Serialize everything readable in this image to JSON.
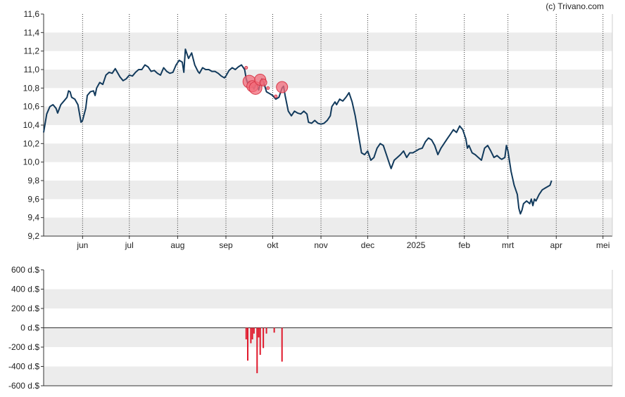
{
  "source_credit": "(c) Trivano.com",
  "chart_data": [
    {
      "type": "line",
      "title": "",
      "xlabel": "",
      "ylabel": "",
      "ylim": [
        9.2,
        11.6
      ],
      "yticks": [
        "11,6",
        "11,4",
        "11,2",
        "11,0",
        "10,8",
        "10,6",
        "10,4",
        "10,2",
        "10,0",
        "9,8",
        "9,6",
        "9,4",
        "9,2"
      ],
      "ytick_values": [
        11.6,
        11.4,
        11.2,
        11.0,
        10.8,
        10.6,
        10.4,
        10.2,
        10.0,
        9.8,
        9.6,
        9.4,
        9.2
      ],
      "x_range_days": [
        0,
        365
      ],
      "month_ticks": [
        {
          "label": "jun",
          "day": 25
        },
        {
          "label": "jul",
          "day": 55
        },
        {
          "label": "aug",
          "day": 86
        },
        {
          "label": "sep",
          "day": 117
        },
        {
          "label": "okt",
          "day": 147
        },
        {
          "label": "nov",
          "day": 178
        },
        {
          "label": "dec",
          "day": 208
        },
        {
          "label": "2025",
          "day": 239
        },
        {
          "label": "feb",
          "day": 270
        },
        {
          "label": "mrt",
          "day": 298
        },
        {
          "label": "apr",
          "day": 329
        },
        {
          "label": "mei",
          "day": 359
        }
      ],
      "grid": "alternating horizontal bands, dotted vertical month lines",
      "colors": {
        "line": "#123a5c",
        "band": "#ececec",
        "marker": "#f26b7a",
        "marker_edge": "#d83a4a"
      },
      "series": [
        {
          "values": [
            [
              0,
              10.32
            ],
            [
              2,
              10.52
            ],
            [
              4,
              10.6
            ],
            [
              6,
              10.62
            ],
            [
              8,
              10.58
            ],
            [
              9,
              10.53
            ],
            [
              11,
              10.62
            ],
            [
              13,
              10.66
            ],
            [
              15,
              10.7
            ],
            [
              16,
              10.77
            ],
            [
              17,
              10.76
            ],
            [
              18,
              10.7
            ],
            [
              20,
              10.68
            ],
            [
              22,
              10.62
            ],
            [
              24,
              10.43
            ],
            [
              25,
              10.45
            ],
            [
              27,
              10.58
            ],
            [
              28,
              10.72
            ],
            [
              30,
              10.76
            ],
            [
              32,
              10.77
            ],
            [
              33,
              10.72
            ],
            [
              34,
              10.8
            ],
            [
              36,
              10.86
            ],
            [
              38,
              10.84
            ],
            [
              40,
              10.94
            ],
            [
              42,
              10.97
            ],
            [
              44,
              10.96
            ],
            [
              46,
              11.01
            ],
            [
              47,
              10.98
            ],
            [
              49,
              10.92
            ],
            [
              51,
              10.88
            ],
            [
              53,
              10.9
            ],
            [
              55,
              10.94
            ],
            [
              57,
              10.93
            ],
            [
              59,
              10.97
            ],
            [
              61,
              11.0
            ],
            [
              63,
              11.0
            ],
            [
              65,
              11.05
            ],
            [
              67,
              11.03
            ],
            [
              69,
              10.98
            ],
            [
              71,
              10.99
            ],
            [
              73,
              10.96
            ],
            [
              75,
              10.94
            ],
            [
              77,
              11.02
            ],
            [
              79,
              10.98
            ],
            [
              81,
              10.96
            ],
            [
              83,
              10.97
            ],
            [
              85,
              11.05
            ],
            [
              87,
              11.1
            ],
            [
              89,
              11.08
            ],
            [
              90,
              10.97
            ],
            [
              91,
              11.22
            ],
            [
              93,
              11.12
            ],
            [
              95,
              11.18
            ],
            [
              97,
              11.05
            ],
            [
              99,
              10.98
            ],
            [
              100,
              10.96
            ],
            [
              102,
              11.02
            ],
            [
              104,
              11.0
            ],
            [
              106,
              11.0
            ],
            [
              108,
              10.98
            ],
            [
              110,
              10.98
            ],
            [
              112,
              10.96
            ],
            [
              114,
              10.93
            ],
            [
              116,
              10.91
            ],
            [
              117,
              10.93
            ],
            [
              119,
              10.99
            ],
            [
              121,
              11.02
            ],
            [
              123,
              11.0
            ],
            [
              125,
              11.03
            ],
            [
              127,
              11.05
            ],
            [
              129,
              11.0
            ],
            [
              130,
              10.9
            ],
            [
              131,
              10.85
            ],
            [
              132,
              10.87
            ],
            [
              133,
              10.83
            ],
            [
              134,
              10.82
            ],
            [
              135,
              10.79
            ],
            [
              136,
              10.83
            ],
            [
              137,
              10.84
            ],
            [
              138,
              10.78
            ],
            [
              139,
              10.85
            ],
            [
              140,
              10.9
            ],
            [
              141,
              10.87
            ],
            [
              142,
              10.82
            ],
            [
              143,
              10.76
            ],
            [
              145,
              10.74
            ],
            [
              147,
              10.72
            ],
            [
              149,
              10.68
            ],
            [
              151,
              10.7
            ],
            [
              153,
              10.8
            ],
            [
              154,
              10.82
            ],
            [
              155,
              10.72
            ],
            [
              157,
              10.55
            ],
            [
              159,
              10.5
            ],
            [
              161,
              10.55
            ],
            [
              163,
              10.53
            ],
            [
              165,
              10.52
            ],
            [
              167,
              10.55
            ],
            [
              169,
              10.52
            ],
            [
              170,
              10.43
            ],
            [
              172,
              10.42
            ],
            [
              174,
              10.45
            ],
            [
              176,
              10.42
            ],
            [
              178,
              10.41
            ],
            [
              180,
              10.42
            ],
            [
              182,
              10.45
            ],
            [
              184,
              10.5
            ],
            [
              185,
              10.6
            ],
            [
              187,
              10.65
            ],
            [
              188,
              10.62
            ],
            [
              190,
              10.68
            ],
            [
              192,
              10.66
            ],
            [
              194,
              10.7
            ],
            [
              196,
              10.75
            ],
            [
              198,
              10.65
            ],
            [
              200,
              10.5
            ],
            [
              202,
              10.3
            ],
            [
              204,
              10.1
            ],
            [
              206,
              10.08
            ],
            [
              208,
              10.12
            ],
            [
              210,
              10.02
            ],
            [
              212,
              10.05
            ],
            [
              214,
              10.15
            ],
            [
              216,
              10.2
            ],
            [
              218,
              10.18
            ],
            [
              220,
              10.08
            ],
            [
              222,
              9.98
            ],
            [
              223,
              9.93
            ],
            [
              225,
              10.02
            ],
            [
              227,
              10.05
            ],
            [
              229,
              10.08
            ],
            [
              231,
              10.12
            ],
            [
              233,
              10.05
            ],
            [
              235,
              10.1
            ],
            [
              237,
              10.1
            ],
            [
              239,
              10.12
            ],
            [
              241,
              10.14
            ],
            [
              243,
              10.15
            ],
            [
              245,
              10.22
            ],
            [
              247,
              10.26
            ],
            [
              249,
              10.24
            ],
            [
              251,
              10.18
            ],
            [
              253,
              10.08
            ],
            [
              255,
              10.15
            ],
            [
              257,
              10.2
            ],
            [
              259,
              10.25
            ],
            [
              261,
              10.3
            ],
            [
              263,
              10.35
            ],
            [
              265,
              10.32
            ],
            [
              267,
              10.39
            ],
            [
              269,
              10.35
            ],
            [
              271,
              10.25
            ],
            [
              272,
              10.15
            ],
            [
              273,
              10.18
            ],
            [
              275,
              10.1
            ],
            [
              277,
              10.08
            ],
            [
              279,
              10.05
            ],
            [
              281,
              10.02
            ],
            [
              283,
              10.15
            ],
            [
              285,
              10.18
            ],
            [
              287,
              10.12
            ],
            [
              289,
              10.05
            ],
            [
              291,
              10.07
            ],
            [
              293,
              10.04
            ],
            [
              294,
              10.03
            ],
            [
              296,
              10.05
            ],
            [
              297,
              10.18
            ],
            [
              298,
              10.12
            ],
            [
              300,
              9.9
            ],
            [
              302,
              9.75
            ],
            [
              304,
              9.65
            ],
            [
              305,
              9.5
            ],
            [
              306,
              9.44
            ],
            [
              307,
              9.48
            ],
            [
              308,
              9.55
            ],
            [
              310,
              9.58
            ],
            [
              312,
              9.55
            ],
            [
              313,
              9.6
            ],
            [
              314,
              9.53
            ],
            [
              315,
              9.6
            ],
            [
              316,
              9.58
            ],
            [
              318,
              9.65
            ],
            [
              320,
              9.7
            ],
            [
              322,
              9.72
            ],
            [
              325,
              9.75
            ],
            [
              326,
              9.8
            ]
          ]
        }
      ],
      "markers": [
        {
          "x": 132,
          "y": 10.87,
          "size": "large"
        },
        {
          "x": 134,
          "y": 10.82,
          "size": "medium"
        },
        {
          "x": 136,
          "y": 10.8,
          "size": "large"
        },
        {
          "x": 139,
          "y": 10.89,
          "size": "medium"
        },
        {
          "x": 141,
          "y": 10.86,
          "size": "small"
        },
        {
          "x": 153,
          "y": 10.81,
          "size": "medium"
        },
        {
          "x": 130,
          "y": 11.02,
          "size": "dot"
        },
        {
          "x": 144,
          "y": 10.8,
          "size": "dot"
        },
        {
          "x": 149,
          "y": 10.71,
          "size": "dot"
        }
      ]
    },
    {
      "type": "bar",
      "title": "",
      "ylabel": "",
      "ylim": [
        -600,
        600
      ],
      "yticks": [
        "600 d.$",
        "400 d.$",
        "200 d.$",
        "0 d.$",
        "-200 d.$",
        "-400 d.$",
        "-600 d.$"
      ],
      "ytick_values": [
        600,
        400,
        200,
        0,
        -200,
        -400,
        -600
      ],
      "colors": {
        "bar": "#e0182b"
      },
      "values": [
        {
          "x": 130,
          "y": -120
        },
        {
          "x": 131,
          "y": -340
        },
        {
          "x": 133,
          "y": -160
        },
        {
          "x": 134,
          "y": -120
        },
        {
          "x": 135,
          "y": -60
        },
        {
          "x": 137,
          "y": -470
        },
        {
          "x": 138,
          "y": -100
        },
        {
          "x": 139,
          "y": -280
        },
        {
          "x": 141,
          "y": -210
        },
        {
          "x": 143,
          "y": -60
        },
        {
          "x": 148,
          "y": -50
        },
        {
          "x": 153,
          "y": -350
        }
      ]
    }
  ]
}
